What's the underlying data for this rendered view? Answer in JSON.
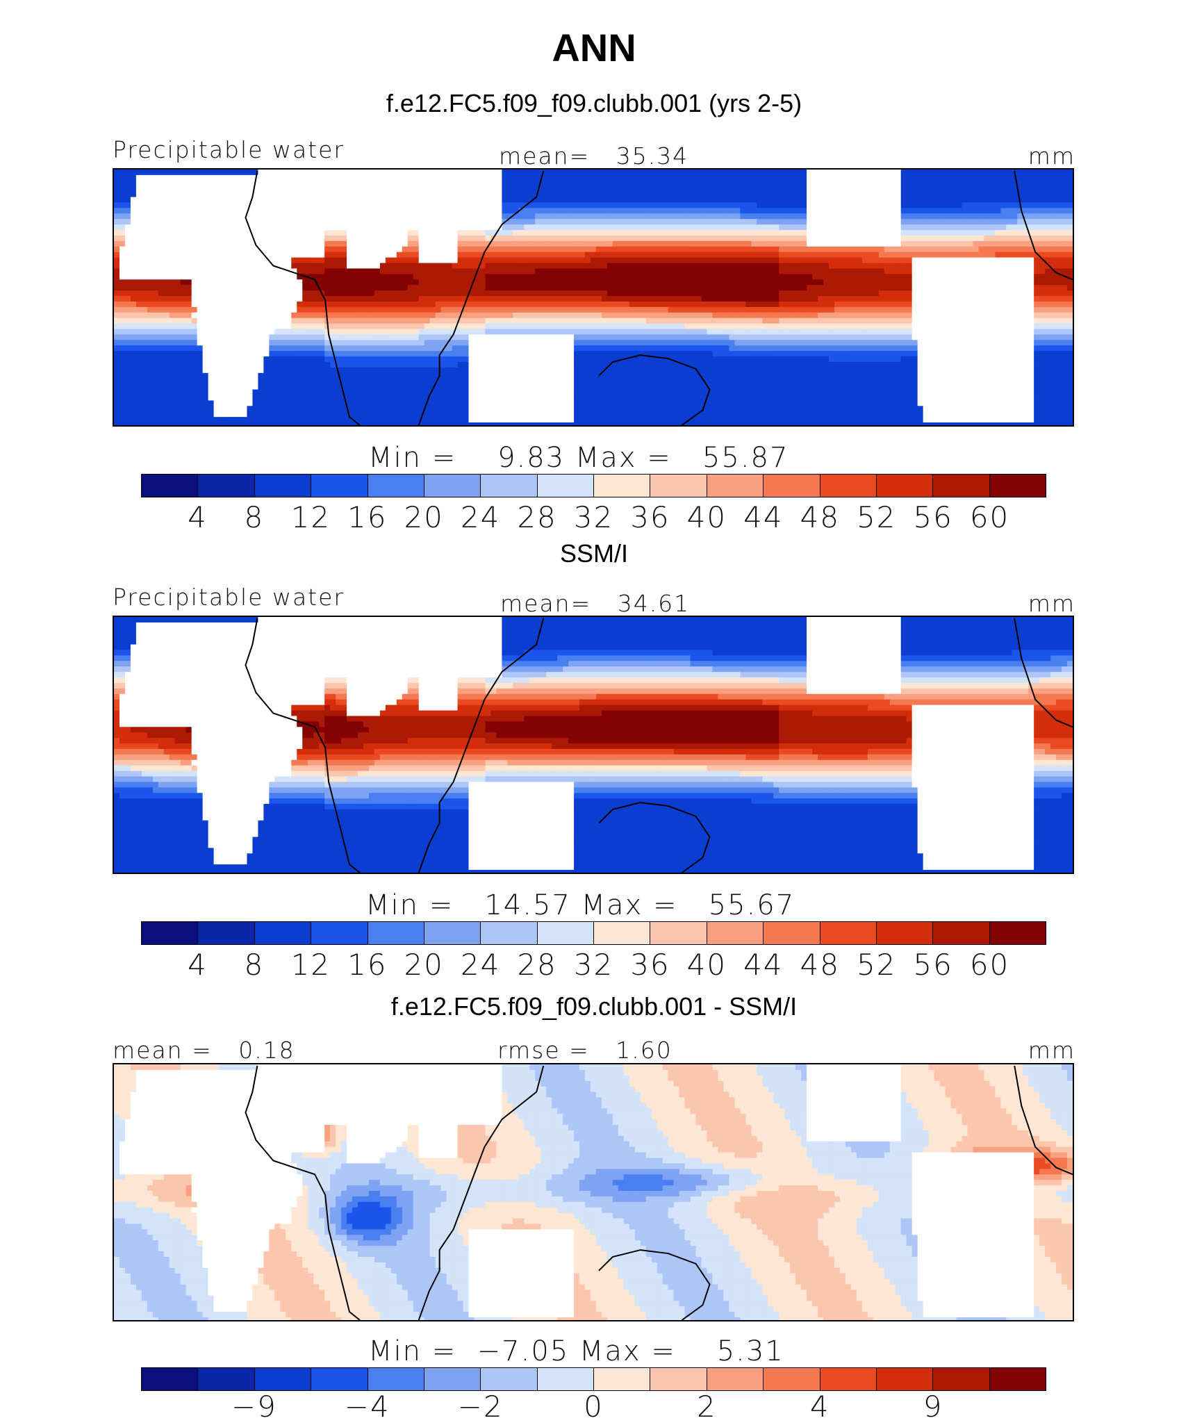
{
  "title": "ANN",
  "units_label": "mm",
  "panels": [
    {
      "title": "f.e12.FC5.f09_f09.clubb.001 (yrs 2-5)",
      "left_label": "Precipitable water",
      "center_label": "mean=   35.34",
      "right_label": "mm",
      "minmax": "Min =    9.83 Max =   55.87",
      "ticks": [
        "4",
        "8",
        "12",
        "16",
        "20",
        "24",
        "28",
        "32",
        "36",
        "40",
        "44",
        "48",
        "52",
        "56",
        "60"
      ],
      "field": "model"
    },
    {
      "title": "SSM/I",
      "left_label": "Precipitable water",
      "center_label": "mean=   34.61",
      "right_label": "mm",
      "minmax": "Min =   14.57 Max =   55.67",
      "ticks": [
        "4",
        "8",
        "12",
        "16",
        "20",
        "24",
        "28",
        "32",
        "36",
        "40",
        "44",
        "48",
        "52",
        "56",
        "60"
      ],
      "field": "obs"
    },
    {
      "title": "f.e12.FC5.f09_f09.clubb.001 - SSM/I",
      "left_label": "mean =   0.18",
      "center_label": "rmse =   1.60",
      "right_label": "mm",
      "minmax": "Min =  −7.05 Max =    5.31",
      "ticks": [
        "−9",
        "−4",
        "−2",
        "0",
        "2",
        "4",
        "9"
      ],
      "field": "diff"
    }
  ],
  "colors": {
    "palette": [
      "#0a0f7e",
      "#0a26a8",
      "#0b3ed0",
      "#1b55ec",
      "#4a7ff0",
      "#7ea3f2",
      "#adc6f7",
      "#d3e3f9",
      "#fde6d4",
      "#fbc6ad",
      "#f8a080",
      "#f47850",
      "#ea4a22",
      "#d42d0b",
      "#ac1a06",
      "#830305"
    ],
    "land": "#ffffff",
    "coast": "#000000"
  }
}
